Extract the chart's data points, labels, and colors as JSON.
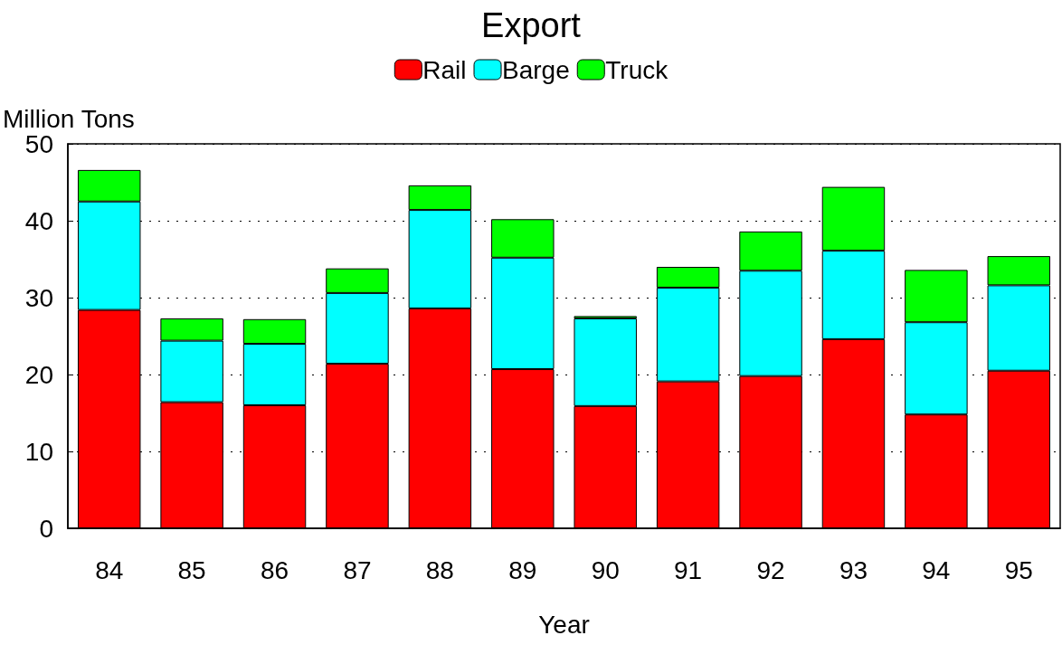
{
  "chart_data": {
    "type": "bar",
    "title": "Export",
    "xlabel": "Year",
    "ylabel": "Million Tons",
    "categories": [
      "84",
      "85",
      "86",
      "87",
      "88",
      "89",
      "90",
      "91",
      "92",
      "93",
      "94",
      "95"
    ],
    "stacked": true,
    "series": [
      {
        "name": "Rail",
        "color": "#ff0000",
        "values": [
          28.4,
          16.4,
          16.0,
          21.4,
          28.6,
          20.7,
          15.9,
          19.1,
          19.8,
          24.6,
          14.8,
          20.5
        ]
      },
      {
        "name": "Barge",
        "color": "#00ffff",
        "values": [
          14.1,
          8.0,
          8.0,
          9.2,
          12.8,
          14.5,
          11.4,
          12.2,
          13.7,
          11.5,
          12.0,
          11.1
        ]
      },
      {
        "name": "Truck",
        "color": "#00ff00",
        "values": [
          4.1,
          2.9,
          3.2,
          3.2,
          3.2,
          5.0,
          0.3,
          2.7,
          5.1,
          8.3,
          6.8,
          3.8
        ]
      }
    ],
    "ylim": [
      0,
      50
    ],
    "yticks": [
      0,
      10,
      20,
      30,
      40,
      50
    ],
    "grid": "y",
    "legend": "top"
  }
}
